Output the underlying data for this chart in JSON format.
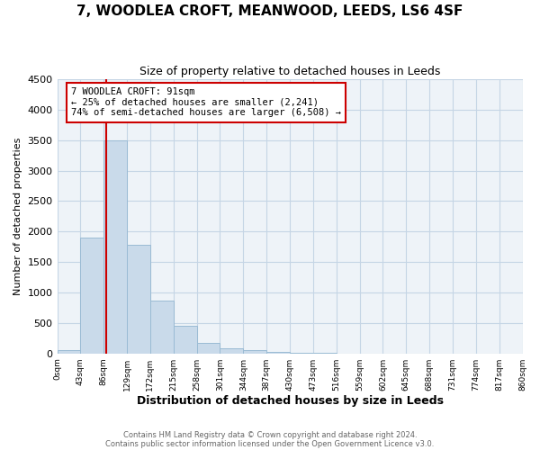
{
  "title": "7, WOODLEA CROFT, MEANWOOD, LEEDS, LS6 4SF",
  "subtitle": "Size of property relative to detached houses in Leeds",
  "xlabel": "Distribution of detached houses by size in Leeds",
  "ylabel": "Number of detached properties",
  "bar_color": "#c9daea",
  "bar_edge_color": "#9abbd4",
  "grid_color": "#c5d5e5",
  "background_color": "#eef3f8",
  "ylim": [
    0,
    4500
  ],
  "yticks": [
    0,
    500,
    1000,
    1500,
    2000,
    2500,
    3000,
    3500,
    4000,
    4500
  ],
  "bin_edges": [
    0,
    43,
    86,
    129,
    172,
    215,
    258,
    301,
    344,
    387,
    430,
    473,
    516,
    559,
    602,
    645,
    688,
    731,
    774,
    817,
    860
  ],
  "bin_labels": [
    "0sqm",
    "43sqm",
    "86sqm",
    "129sqm",
    "172sqm",
    "215sqm",
    "258sqm",
    "301sqm",
    "344sqm",
    "387sqm",
    "430sqm",
    "473sqm",
    "516sqm",
    "559sqm",
    "602sqm",
    "645sqm",
    "688sqm",
    "731sqm",
    "774sqm",
    "817sqm",
    "860sqm"
  ],
  "counts": [
    50,
    1900,
    3500,
    1780,
    860,
    450,
    180,
    90,
    55,
    30,
    10,
    5,
    0,
    0,
    0,
    0,
    0,
    0,
    0,
    0
  ],
  "vline_x": 91,
  "vline_color": "#cc0000",
  "annotation_line1": "7 WOODLEA CROFT: 91sqm",
  "annotation_line2": "← 25% of detached houses are smaller (2,241)",
  "annotation_line3": "74% of semi-detached houses are larger (6,508) →",
  "annotation_box_color": "#ffffff",
  "annotation_box_edge": "#cc0000",
  "footer1": "Contains HM Land Registry data © Crown copyright and database right 2024.",
  "footer2": "Contains public sector information licensed under the Open Government Licence v3.0."
}
